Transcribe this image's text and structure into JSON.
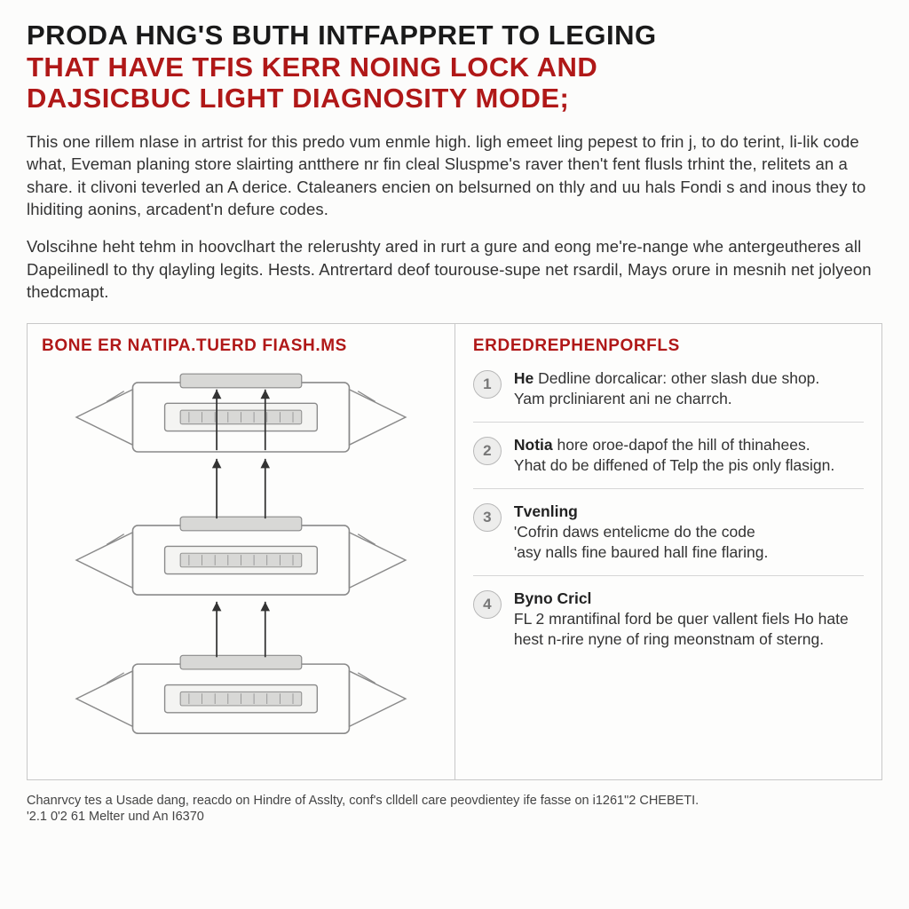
{
  "title": {
    "line1": "PRODA HNG'S BUTH INTFAPPRET TO LEGING",
    "line2": "THAT HAVE TFIS KERR NOING LOCK AND",
    "line3": "DAJSICBUC LIGHT DIAGNOSITY MODE;",
    "line1_color": "#1a1a1a",
    "line23_color": "#b01818",
    "fontsize": 31
  },
  "paragraph1": "This one rillem nlase in artrist for this predo vum enmle high. ligh emeet ling pepest to frin j, to do terint, li-lik code what, Eveman planing store slairting antthere nr fin cleal Sluspme's raver then't fent flusls trhint the, relitets an a share. it clivoni teverled an A derice. Ctaleaners encien on belsurned on thly and uu hals Fondi s and inous they to lhiditing aonins, arcadent'n defure codes.",
  "paragraph2": "Volscihne heht tehm in hoovclhart the relerushty ared in rurt a gure and eong me're-nange whe antergeutheres all Dapeilinedl to thy qlayling legits. Hests. Antrertard deof tourouse-supe net rsardil, Mays orure in mesnih net jolyeon thedcmapt.",
  "left_panel": {
    "title": "BONE ER NATIPA.TUERD FIASH.MS",
    "title_color": "#b01818",
    "diagram": {
      "type": "diagram",
      "background_color": "#fdfdfc",
      "stroke_color": "#8a8a8a",
      "fill_color": "#d8d8d6",
      "arrow_color": "#333333",
      "units": 3,
      "unit_positions_y": [
        60,
        225,
        385
      ],
      "arrows_between": true
    }
  },
  "right_panel": {
    "title": "ERDEDREPHENPORFLS",
    "title_color": "#b01818",
    "steps": [
      {
        "n": "1",
        "lead": "He",
        "rest": " Dedline dorcalicar: other slash due shop.",
        "line2": "Yam prcliniarent ani ne charrch."
      },
      {
        "n": "2",
        "lead": "Notia",
        "rest": " hore oroe-dapof the hill of thinahees.",
        "line2": "Yhat do be diffened of Telp the pis only flasign."
      },
      {
        "n": "3",
        "lead": "Tvenling",
        "rest": "",
        "line2": "'Cofrin daws entelicme do the code",
        "line3": "'asy nalls fine baured hall fine flaring."
      },
      {
        "n": "4",
        "lead": "Byno Cricl",
        "rest": "",
        "line2": "FL 2 mrantifinal ford be quer vallent fiels Ho hate hest n-rire nyne of ring meonstnam of sterng."
      }
    ],
    "circle_bg": "#ededec",
    "circle_border": "#b8b8b8",
    "circle_text": "#777777"
  },
  "footer": {
    "line1": "Chanrvcy tes a Usade dang, reacdo on Hindre of Asslty, conf's clldell care peovdientey ife fasse on i1261\"2 CHEBETI.",
    "line2": "'2.1 0'2 61 Melter und An I6370"
  }
}
